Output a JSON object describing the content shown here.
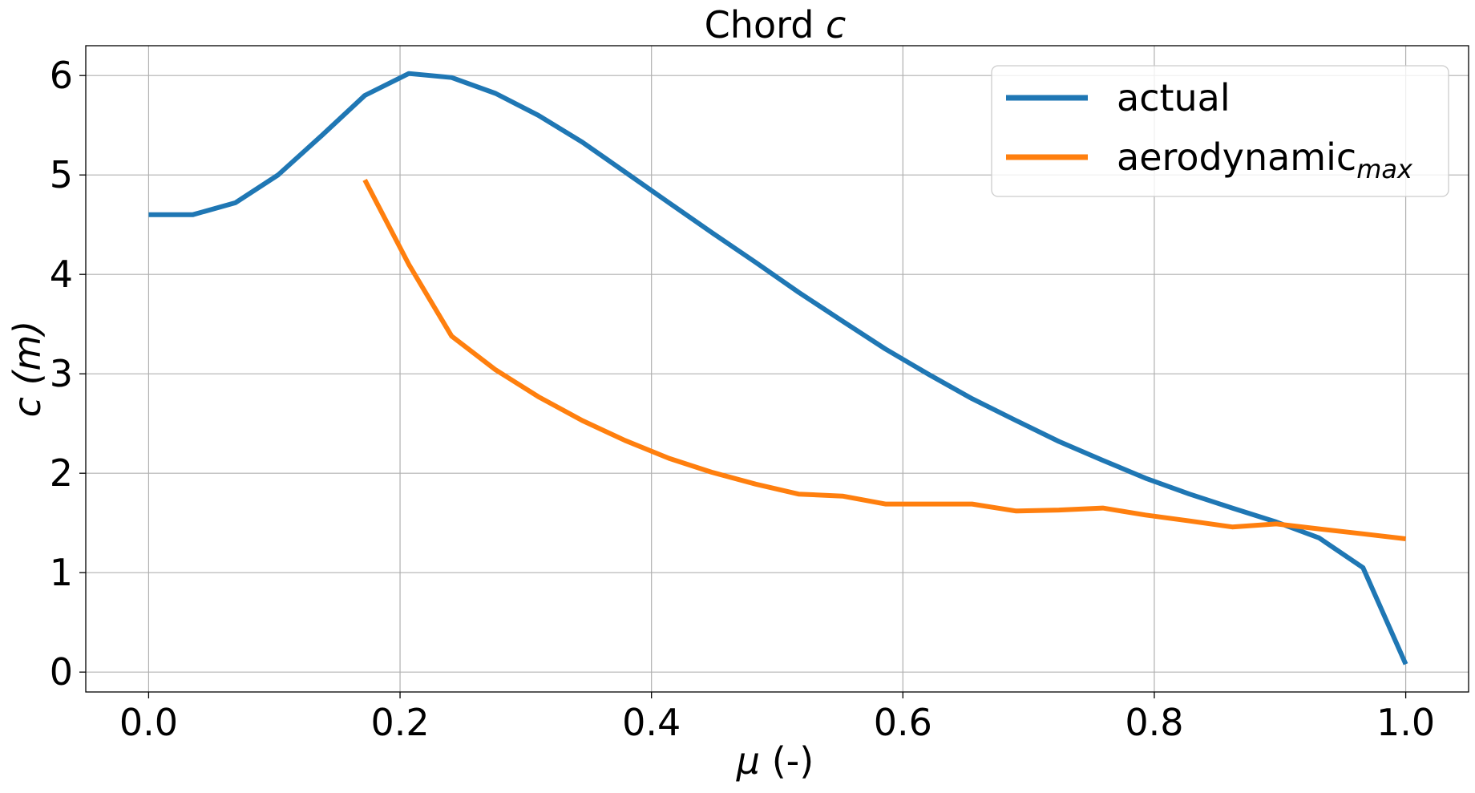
{
  "chart_data": {
    "type": "line",
    "title_prefix": "Chord ",
    "title_symbol": "c",
    "xlabel_symbol": "μ",
    "xlabel_suffix": " (-)",
    "ylabel_text": "c (m)",
    "xlim": [
      -0.05,
      1.05
    ],
    "ylim": [
      -0.2,
      6.3
    ],
    "xticks": [
      0.0,
      0.2,
      0.4,
      0.6,
      0.8,
      1.0
    ],
    "xtick_labels": [
      "0.0",
      "0.2",
      "0.4",
      "0.6",
      "0.8",
      "1.0"
    ],
    "yticks": [
      0,
      1,
      2,
      3,
      4,
      5,
      6
    ],
    "ytick_labels": [
      "0",
      "1",
      "2",
      "3",
      "4",
      "5",
      "6"
    ],
    "grid": true,
    "legend_position": "top-right",
    "series": [
      {
        "name": "actual",
        "legend_main": "actual",
        "legend_sub": "",
        "color": "#1f77b4",
        "x": [
          0.0,
          0.035,
          0.069,
          0.103,
          0.138,
          0.172,
          0.207,
          0.241,
          0.276,
          0.31,
          0.345,
          0.379,
          0.414,
          0.448,
          0.483,
          0.517,
          0.552,
          0.586,
          0.621,
          0.655,
          0.69,
          0.724,
          0.759,
          0.793,
          0.828,
          0.862,
          0.897,
          0.931,
          0.966,
          1.0
        ],
        "y": [
          4.6,
          4.6,
          4.72,
          5.0,
          5.4,
          5.8,
          6.02,
          5.98,
          5.82,
          5.6,
          5.33,
          5.03,
          4.72,
          4.42,
          4.12,
          3.82,
          3.53,
          3.25,
          2.99,
          2.75,
          2.53,
          2.32,
          2.13,
          1.95,
          1.79,
          1.65,
          1.51,
          1.35,
          1.05,
          0.08
        ]
      },
      {
        "name": "aerodynamic max",
        "legend_main": "aerodynamic",
        "legend_sub": "max",
        "color": "#ff7f0e",
        "x": [
          0.172,
          0.207,
          0.241,
          0.276,
          0.31,
          0.345,
          0.379,
          0.414,
          0.448,
          0.483,
          0.517,
          0.552,
          0.586,
          0.621,
          0.655,
          0.69,
          0.724,
          0.759,
          0.793,
          0.828,
          0.862,
          0.897,
          0.931,
          0.966,
          1.0
        ],
        "y": [
          4.95,
          4.1,
          3.38,
          3.04,
          2.77,
          2.53,
          2.33,
          2.15,
          2.01,
          1.89,
          1.79,
          1.77,
          1.69,
          1.69,
          1.69,
          1.62,
          1.63,
          1.65,
          1.58,
          1.52,
          1.46,
          1.49,
          1.44,
          1.39,
          1.34
        ]
      }
    ]
  }
}
